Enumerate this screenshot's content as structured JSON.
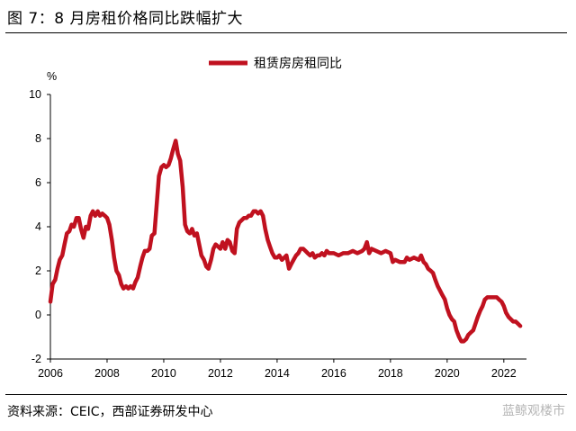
{
  "header": {
    "title": "图 7：8 月房租价格同比跌幅扩大"
  },
  "footer": {
    "source": "资料来源：CEIC，西部证券研发中心",
    "watermark": "蓝鲸观楼市"
  },
  "colors": {
    "series": "#c0111f",
    "axis": "#000000"
  },
  "chart_data": {
    "type": "line",
    "ylabel": "%",
    "ylim": [
      -2,
      10
    ],
    "xlim": [
      2006,
      2022.8
    ],
    "yticks": [
      -2,
      0,
      2,
      4,
      6,
      8,
      10
    ],
    "xticks": [
      2006,
      2008,
      2010,
      2012,
      2014,
      2016,
      2018,
      2020,
      2022
    ],
    "legend": {
      "position": "top-center"
    },
    "series": [
      {
        "name": "租赁房房租同比",
        "x": [
          2006.0,
          2006.08,
          2006.17,
          2006.25,
          2006.33,
          2006.42,
          2006.5,
          2006.58,
          2006.67,
          2006.75,
          2006.83,
          2006.92,
          2007.0,
          2007.08,
          2007.17,
          2007.25,
          2007.33,
          2007.42,
          2007.5,
          2007.58,
          2007.67,
          2007.75,
          2007.83,
          2007.92,
          2008.0,
          2008.08,
          2008.17,
          2008.25,
          2008.33,
          2008.42,
          2008.5,
          2008.58,
          2008.67,
          2008.75,
          2008.83,
          2008.92,
          2009.0,
          2009.08,
          2009.17,
          2009.25,
          2009.33,
          2009.42,
          2009.5,
          2009.58,
          2009.67,
          2009.75,
          2009.83,
          2009.92,
          2010.0,
          2010.08,
          2010.17,
          2010.25,
          2010.33,
          2010.42,
          2010.5,
          2010.58,
          2010.67,
          2010.75,
          2010.83,
          2010.92,
          2011.0,
          2011.08,
          2011.17,
          2011.25,
          2011.33,
          2011.42,
          2011.5,
          2011.58,
          2011.67,
          2011.75,
          2011.83,
          2011.92,
          2012.0,
          2012.08,
          2012.17,
          2012.25,
          2012.33,
          2012.42,
          2012.5,
          2012.58,
          2012.67,
          2012.75,
          2012.83,
          2012.92,
          2013.0,
          2013.08,
          2013.17,
          2013.25,
          2013.33,
          2013.42,
          2013.5,
          2013.58,
          2013.67,
          2013.75,
          2013.83,
          2013.92,
          2014.0,
          2014.08,
          2014.17,
          2014.25,
          2014.33,
          2014.42,
          2014.5,
          2014.58,
          2014.67,
          2014.75,
          2014.83,
          2014.92,
          2015.0,
          2015.08,
          2015.17,
          2015.25,
          2015.33,
          2015.42,
          2015.5,
          2015.58,
          2015.67,
          2015.75,
          2015.83,
          2015.92,
          2016.0,
          2016.17,
          2016.33,
          2016.5,
          2016.67,
          2016.83,
          2017.0,
          2017.08,
          2017.17,
          2017.25,
          2017.33,
          2017.5,
          2017.67,
          2017.83,
          2018.0,
          2018.08,
          2018.17,
          2018.33,
          2018.5,
          2018.58,
          2018.67,
          2018.83,
          2019.0,
          2019.08,
          2019.17,
          2019.25,
          2019.33,
          2019.42,
          2019.5,
          2019.58,
          2019.67,
          2019.75,
          2019.83,
          2019.92,
          2020.0,
          2020.08,
          2020.17,
          2020.25,
          2020.33,
          2020.42,
          2020.5,
          2020.58,
          2020.67,
          2020.75,
          2020.83,
          2020.92,
          2021.0,
          2021.08,
          2021.17,
          2021.25,
          2021.33,
          2021.42,
          2021.5,
          2021.58,
          2021.67,
          2021.75,
          2021.83,
          2021.92,
          2022.0,
          2022.08,
          2022.17,
          2022.25,
          2022.33,
          2022.42,
          2022.5,
          2022.58
        ],
        "y": [
          0.6,
          1.4,
          1.6,
          2.1,
          2.5,
          2.7,
          3.2,
          3.7,
          3.8,
          4.1,
          4.0,
          4.4,
          4.4,
          3.9,
          3.5,
          4.0,
          3.9,
          4.5,
          4.7,
          4.5,
          4.7,
          4.5,
          4.6,
          4.5,
          4.4,
          4.1,
          3.4,
          2.6,
          2.0,
          1.8,
          1.4,
          1.2,
          1.3,
          1.2,
          1.3,
          1.2,
          1.5,
          1.7,
          2.2,
          2.6,
          2.9,
          2.9,
          3.0,
          3.6,
          3.7,
          5.0,
          6.3,
          6.7,
          6.8,
          6.7,
          6.8,
          7.1,
          7.5,
          7.9,
          7.3,
          7.0,
          5.8,
          4.1,
          3.8,
          3.7,
          3.9,
          3.6,
          3.7,
          3.2,
          2.7,
          2.5,
          2.2,
          2.1,
          2.5,
          3.0,
          3.2,
          3.1,
          3.0,
          3.3,
          3.0,
          3.4,
          3.3,
          2.9,
          2.8,
          3.9,
          4.2,
          4.3,
          4.4,
          4.4,
          4.5,
          4.5,
          4.7,
          4.7,
          4.6,
          4.7,
          4.5,
          3.9,
          3.4,
          3.1,
          2.8,
          2.6,
          2.6,
          2.7,
          2.5,
          2.6,
          2.7,
          2.1,
          2.3,
          2.5,
          2.7,
          2.8,
          3.0,
          3.0,
          2.9,
          2.8,
          2.7,
          2.8,
          2.6,
          2.7,
          2.7,
          2.8,
          2.7,
          2.9,
          2.8,
          2.8,
          2.8,
          2.7,
          2.8,
          2.8,
          2.9,
          2.8,
          2.9,
          3.0,
          3.3,
          2.8,
          3.0,
          2.9,
          2.8,
          2.9,
          2.8,
          2.4,
          2.5,
          2.4,
          2.4,
          2.6,
          2.5,
          2.6,
          2.5,
          2.7,
          2.4,
          2.3,
          2.1,
          2.0,
          1.9,
          1.6,
          1.3,
          1.1,
          0.9,
          0.7,
          0.3,
          0.0,
          -0.2,
          -0.3,
          -0.7,
          -1.0,
          -1.2,
          -1.2,
          -1.1,
          -0.9,
          -0.8,
          -0.7,
          -0.4,
          -0.1,
          0.2,
          0.4,
          0.7,
          0.8,
          0.8,
          0.8,
          0.8,
          0.8,
          0.7,
          0.6,
          0.4,
          0.1,
          -0.1,
          -0.2,
          -0.3,
          -0.3,
          -0.4,
          -0.5
        ]
      }
    ]
  }
}
